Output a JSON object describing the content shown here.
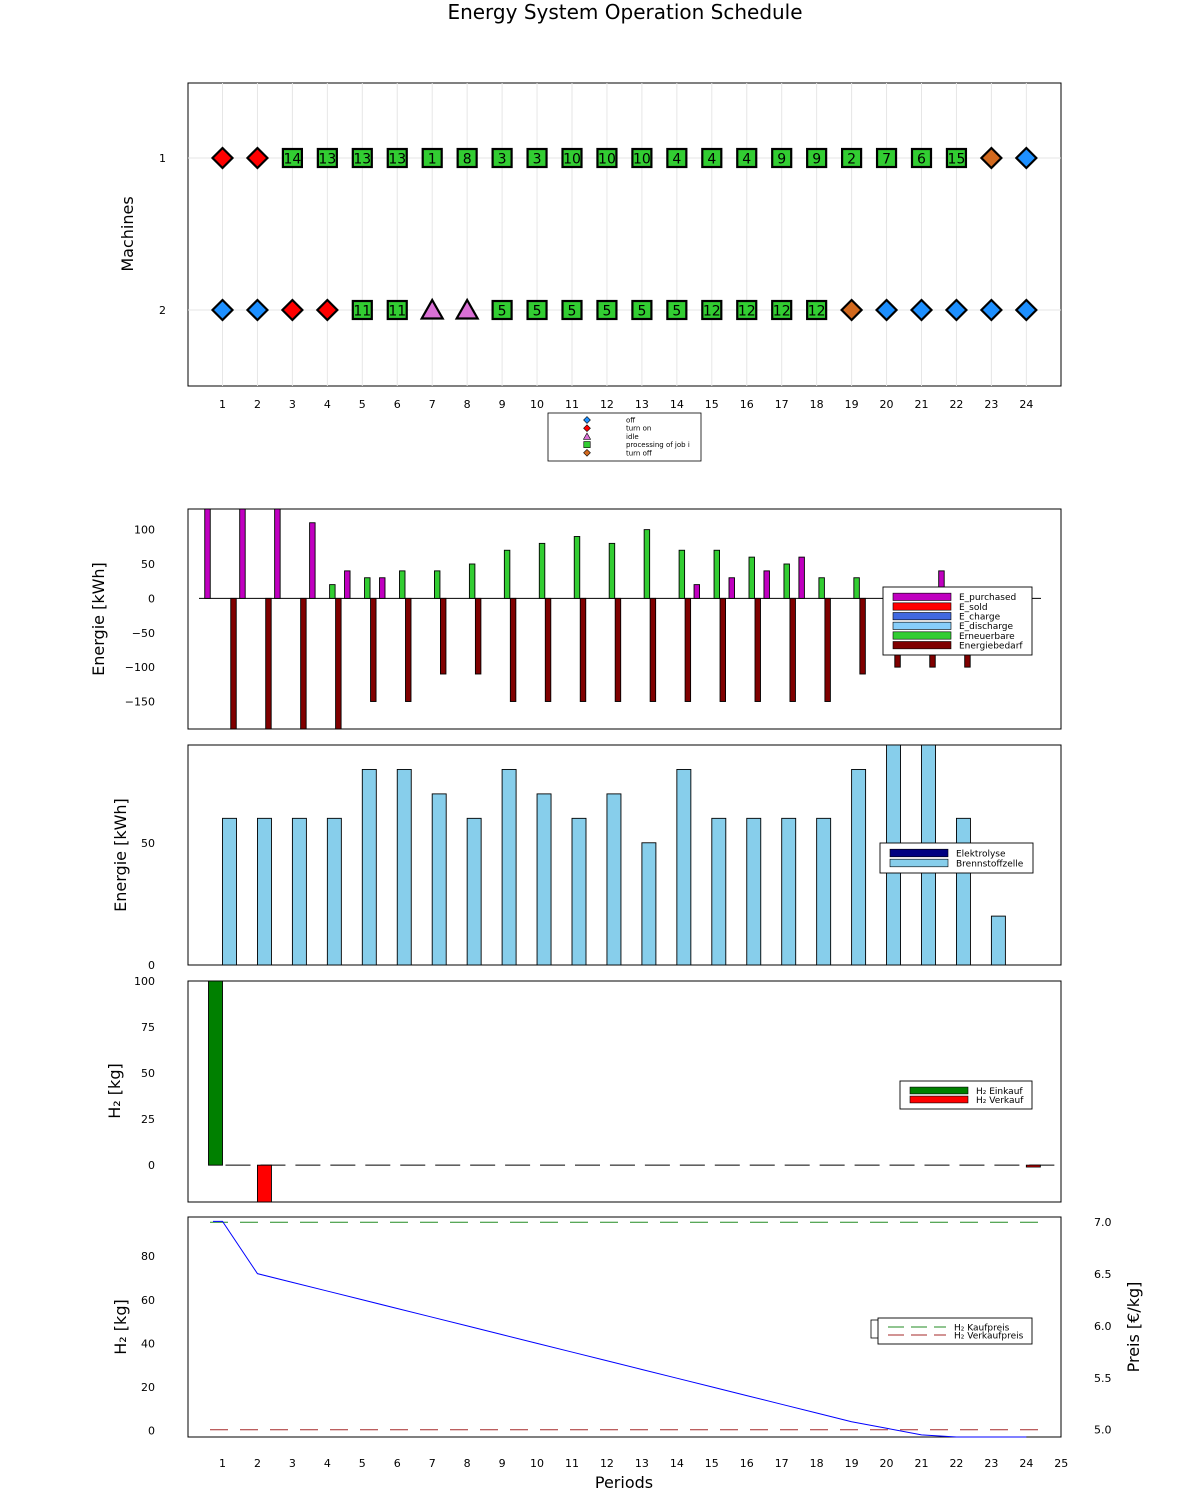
{
  "title": "Energy System Operation Schedule",
  "colors": {
    "off": "#1e90ff",
    "turn_on": "#ff0000",
    "idle": "#da70d6",
    "processing": "#32cd32",
    "turn_off": "#d2691e",
    "E_purchased": "#c000c0",
    "E_sold": "#ff0000",
    "E_charge": "#4169e1",
    "E_discharge": "#87cefa",
    "Erneuerbare": "#32cd32",
    "Energiebedarf": "#800000",
    "Elektrolyse": "#000080",
    "Brennstoffzelle": "#87ceeb",
    "H2_einkauf": "#008000",
    "H2_verkauf": "#ff0000",
    "storage": "#0000ff",
    "kaufpreis": "#228b22",
    "verkaufpreis": "#a52a2a"
  },
  "chart_data": [
    {
      "type": "scatter",
      "ylabel": "Machines",
      "ylim": [
        0.5,
        2.5
      ],
      "y_inverted": true,
      "x_ticks": [
        1,
        2,
        3,
        4,
        5,
        6,
        7,
        8,
        9,
        10,
        11,
        12,
        13,
        14,
        15,
        16,
        17,
        18,
        19,
        20,
        21,
        22,
        23,
        24
      ],
      "y_ticks": [
        1,
        2
      ],
      "grid": true,
      "legend": {
        "position": "bottom",
        "entries": [
          {
            "label": "off",
            "marker": "diamond",
            "color_key": "off"
          },
          {
            "label": "turn on",
            "marker": "diamond",
            "color_key": "turn_on"
          },
          {
            "label": "idle",
            "marker": "triangle",
            "color_key": "idle"
          },
          {
            "label": "processing of job i",
            "marker": "square",
            "color_key": "processing"
          },
          {
            "label": "turn off",
            "marker": "diamond",
            "color_key": "turn_off"
          }
        ]
      },
      "machines": [
        {
          "machine": 1,
          "states": [
            "turn on",
            "turn on",
            "processing",
            "processing",
            "processing",
            "processing",
            "processing",
            "processing",
            "processing",
            "processing",
            "processing",
            "processing",
            "processing",
            "processing",
            "processing",
            "processing",
            "processing",
            "processing",
            "processing",
            "processing",
            "processing",
            "processing",
            "turn off",
            "off"
          ],
          "jobs": [
            "",
            "",
            "14",
            "13",
            "13",
            "13",
            "1",
            "8",
            "3",
            "3",
            "10",
            "10",
            "10",
            "4",
            "4",
            "4",
            "9",
            "9",
            "2",
            "7",
            "6",
            "15",
            "",
            ""
          ]
        },
        {
          "machine": 2,
          "states": [
            "off",
            "off",
            "turn on",
            "turn on",
            "processing",
            "processing",
            "idle",
            "idle",
            "processing",
            "processing",
            "processing",
            "processing",
            "processing",
            "processing",
            "processing",
            "processing",
            "processing",
            "processing",
            "turn off",
            "off",
            "off",
            "off",
            "off",
            "off"
          ],
          "jobs": [
            "",
            "",
            "",
            "",
            "11",
            "11",
            "",
            "",
            "5",
            "5",
            "5",
            "5",
            "5",
            "5",
            "12",
            "12",
            "12",
            "12",
            "",
            "",
            "",
            "",
            "",
            ""
          ]
        }
      ]
    },
    {
      "type": "bar",
      "ylabel": "Energie [kWh]",
      "ylim": [
        -190,
        130
      ],
      "y_ticks": [
        100,
        50,
        0,
        -50,
        -100,
        -150
      ],
      "y_tick_labels": [
        "100",
        "50",
        "0",
        "−50",
        "−100",
        "−150"
      ],
      "legend": {
        "position": "right"
      },
      "x": [
        1,
        2,
        3,
        4,
        5,
        6,
        7,
        8,
        9,
        10,
        11,
        12,
        13,
        14,
        15,
        16,
        17,
        18,
        19,
        20,
        21,
        22,
        23,
        24
      ],
      "series": [
        {
          "name": "E_purchased",
          "color_key": "E_purchased",
          "values": [
            130,
            130,
            130,
            110,
            40,
            30,
            0,
            0,
            0,
            0,
            0,
            0,
            0,
            0,
            20,
            30,
            40,
            60,
            0,
            0,
            0,
            40,
            0,
            0
          ]
        },
        {
          "name": "E_sold",
          "color_key": "E_sold",
          "values": [
            0,
            0,
            0,
            0,
            0,
            0,
            0,
            0,
            0,
            0,
            0,
            0,
            0,
            0,
            0,
            0,
            0,
            0,
            0,
            0,
            0,
            0,
            0,
            0
          ]
        },
        {
          "name": "E_charge",
          "color_key": "E_charge",
          "values": [
            0,
            0,
            0,
            0,
            0,
            0,
            0,
            0,
            0,
            0,
            0,
            0,
            0,
            0,
            0,
            0,
            0,
            0,
            0,
            0,
            0,
            0,
            0,
            0
          ]
        },
        {
          "name": "E_discharge",
          "color_key": "E_discharge",
          "values": [
            0,
            0,
            0,
            0,
            0,
            0,
            0,
            0,
            0,
            0,
            0,
            0,
            0,
            0,
            0,
            0,
            0,
            0,
            0,
            0,
            0,
            0,
            0,
            0
          ]
        },
        {
          "name": "Erneuerbare",
          "color_key": "Erneuerbare",
          "values": [
            0,
            0,
            0,
            20,
            30,
            40,
            40,
            50,
            70,
            80,
            90,
            80,
            100,
            70,
            70,
            60,
            50,
            30,
            30,
            0,
            0,
            0,
            0,
            0
          ]
        },
        {
          "name": "Energiebedarf",
          "color_key": "Energiebedarf",
          "values": [
            -190,
            -190,
            -190,
            -190,
            -150,
            -150,
            -110,
            -110,
            -150,
            -150,
            -150,
            -150,
            -150,
            -150,
            -150,
            -150,
            -150,
            -150,
            -110,
            -100,
            -100,
            -100,
            0,
            0
          ]
        }
      ]
    },
    {
      "type": "bar",
      "ylabel": "Energie [kWh]",
      "ylim": [
        0,
        90
      ],
      "y_ticks": [
        0,
        50
      ],
      "legend": {
        "position": "right"
      },
      "x": [
        1,
        2,
        3,
        4,
        5,
        6,
        7,
        8,
        9,
        10,
        11,
        12,
        13,
        14,
        15,
        16,
        17,
        18,
        19,
        20,
        21,
        22,
        23,
        24
      ],
      "series": [
        {
          "name": "Elektrolyse",
          "color_key": "Elektrolyse",
          "values": [
            0,
            0,
            0,
            0,
            0,
            0,
            0,
            0,
            0,
            0,
            0,
            0,
            0,
            0,
            0,
            0,
            0,
            0,
            0,
            0,
            0,
            0,
            0,
            0
          ]
        },
        {
          "name": "Brennstoffzelle",
          "color_key": "Brennstoffzelle",
          "values": [
            60,
            60,
            60,
            60,
            80,
            80,
            70,
            60,
            80,
            70,
            60,
            70,
            50,
            80,
            60,
            60,
            60,
            60,
            80,
            90,
            90,
            60,
            20,
            0
          ]
        }
      ]
    },
    {
      "type": "bar",
      "ylabel": "H₂ [kg]",
      "ylim": [
        -20,
        100
      ],
      "y_ticks": [
        100,
        75,
        50,
        25,
        0
      ],
      "legend": {
        "position": "right"
      },
      "x": [
        1,
        2,
        3,
        4,
        5,
        6,
        7,
        8,
        9,
        10,
        11,
        12,
        13,
        14,
        15,
        16,
        17,
        18,
        19,
        20,
        21,
        22,
        23,
        24
      ],
      "series": [
        {
          "name": "H₂ Einkauf",
          "color_key": "H2_einkauf",
          "values": [
            100,
            0,
            0,
            0,
            0,
            0,
            0,
            0,
            0,
            0,
            0,
            0,
            0,
            0,
            0,
            0,
            0,
            0,
            0,
            0,
            0,
            0,
            0,
            0
          ]
        },
        {
          "name": "H₂ Verkauf",
          "color_key": "H2_verkauf",
          "values": [
            0,
            -20,
            0,
            0,
            0,
            0,
            0,
            0,
            0,
            0,
            0,
            0,
            0,
            0,
            0,
            0,
            0,
            0,
            0,
            0,
            0,
            0,
            0,
            -1
          ]
        }
      ]
    },
    {
      "type": "line",
      "ylabel": "H₂ [kg]",
      "y2label": "Preis [€/kg]",
      "xlabel": "Periods",
      "xlim": [
        0,
        25
      ],
      "ylim": [
        -3,
        98
      ],
      "y2lim": [
        4.93,
        7.05
      ],
      "x_ticks": [
        1,
        2,
        3,
        4,
        5,
        6,
        7,
        8,
        9,
        10,
        11,
        12,
        13,
        14,
        15,
        16,
        17,
        18,
        19,
        20,
        21,
        22,
        23,
        24,
        25
      ],
      "y_ticks": [
        0,
        20,
        40,
        60,
        80
      ],
      "y2_ticks": [
        5.0,
        5.5,
        6.0,
        6.5,
        7.0
      ],
      "y2_tick_labels": [
        "5.0",
        "5.5",
        "6.0",
        "6.5",
        "7.0"
      ],
      "legend": {
        "position": "right"
      },
      "storage": {
        "x": [
          0.75,
          1,
          2,
          3,
          4,
          5,
          6,
          7,
          8,
          9,
          10,
          11,
          12,
          13,
          14,
          15,
          16,
          17,
          18,
          19,
          20,
          21,
          22,
          23,
          24
        ],
        "values": [
          96,
          96,
          72,
          68,
          64,
          60,
          56,
          52,
          48,
          44,
          40,
          36,
          32,
          28,
          24,
          20,
          16,
          12,
          8,
          4,
          1,
          -2,
          -5,
          -6,
          -3
        ]
      },
      "series": [
        {
          "name": "H₂ Kaufpreis",
          "color_key": "kaufpreis",
          "axis": "right",
          "value": 7.0
        },
        {
          "name": "H₂ Verkaufpreis",
          "color_key": "verkaufpreis",
          "axis": "right",
          "value": 5.0
        }
      ]
    }
  ]
}
